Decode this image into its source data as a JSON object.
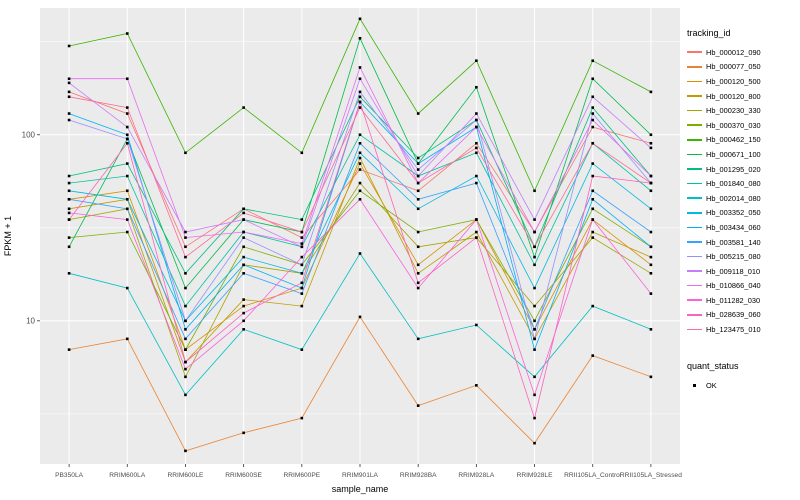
{
  "chart_data": {
    "type": "line",
    "title": "",
    "xlabel": "sample_name",
    "ylabel": "FPKM + 1",
    "y_scale": "log10",
    "ylim": [
      1.7,
      480
    ],
    "y_ticks": [
      {
        "value": 10,
        "label": "10"
      },
      {
        "value": 100,
        "label": "100"
      }
    ],
    "y_minor_gridlines": [
      3.162,
      31.62,
      316.2
    ],
    "panel_background": "#EBEBEB",
    "grid_color": "#FFFFFF",
    "axis_text_color": "#4D4D4D",
    "tick_color": "#333333",
    "point_marker": "black-square",
    "categories": [
      "PB350LA",
      "RRIM600LA",
      "RRIM600LE",
      "RRIM600SE",
      "RRIM600PE",
      "RRIM901LA",
      "RRIM928BA",
      "RRIM928LA",
      "RRIM928LE",
      "RRII105LA_Control",
      "RRII105LA_Stressed"
    ],
    "series": [
      {
        "name": "Hb_000012_090",
        "color": "#F8766D",
        "values": [
          170,
          130,
          25,
          40,
          28,
          65,
          50,
          90,
          30,
          110,
          90
        ]
      },
      {
        "name": "Hb_000077_050",
        "color": "#EA8331",
        "values": [
          7,
          8,
          2,
          2.5,
          3,
          10.5,
          3.5,
          4.5,
          2.2,
          6.5,
          5
        ]
      },
      {
        "name": "Hb_000120_500",
        "color": "#D89000",
        "values": [
          45,
          50,
          7,
          12,
          15,
          70,
          20,
          35,
          9,
          35,
          20
        ]
      },
      {
        "name": "Hb_000120_800",
        "color": "#C09B00",
        "values": [
          40,
          45,
          6,
          13,
          12,
          75,
          18,
          30,
          8,
          30,
          22
        ]
      },
      {
        "name": "Hb_000230_330",
        "color": "#A3A500",
        "values": [
          35,
          40,
          5,
          20,
          18,
          55,
          25,
          28,
          12,
          28,
          18
        ]
      },
      {
        "name": "Hb_000370_030",
        "color": "#7CAE00",
        "values": [
          28,
          30,
          7,
          25,
          20,
          50,
          30,
          35,
          10,
          40,
          25
        ]
      },
      {
        "name": "Hb_000462_150",
        "color": "#39B600",
        "values": [
          300,
          350,
          80,
          140,
          80,
          420,
          130,
          250,
          50,
          250,
          170
        ]
      },
      {
        "name": "Hb_000671_100",
        "color": "#00BB4E",
        "values": [
          25,
          95,
          15,
          35,
          30,
          330,
          70,
          180,
          22,
          200,
          100
        ]
      },
      {
        "name": "Hb_001295_020",
        "color": "#00BF7D",
        "values": [
          60,
          70,
          18,
          40,
          35,
          160,
          75,
          120,
          25,
          140,
          60
        ]
      },
      {
        "name": "Hb_001840_080",
        "color": "#00C1A3",
        "values": [
          55,
          60,
          12,
          30,
          25,
          100,
          60,
          80,
          20,
          90,
          50
        ]
      },
      {
        "name": "Hb_002014_080",
        "color": "#00BFC4",
        "values": [
          18,
          15,
          4,
          9,
          7,
          23,
          8,
          9.5,
          5,
          12,
          9
        ]
      },
      {
        "name": "Hb_003352_050",
        "color": "#00BAE0",
        "values": [
          50,
          45,
          10,
          22,
          18,
          80,
          40,
          60,
          15,
          70,
          40
        ]
      },
      {
        "name": "Hb_003434_060",
        "color": "#00B0F6",
        "values": [
          130,
          100,
          9,
          20,
          15,
          150,
          70,
          110,
          7,
          45,
          25
        ]
      },
      {
        "name": "Hb_003581_140",
        "color": "#35A2FF",
        "values": [
          45,
          40,
          8,
          18,
          14,
          90,
          45,
          55,
          9,
          50,
          30
        ]
      },
      {
        "name": "Hb_005215_080",
        "color": "#9590FF",
        "values": [
          120,
          95,
          10,
          28,
          20,
          170,
          65,
          120,
          8,
          130,
          55
        ]
      },
      {
        "name": "Hb_009118_010",
        "color": "#C77CFF",
        "values": [
          190,
          110,
          30,
          35,
          25,
          200,
          60,
          130,
          35,
          160,
          85
        ]
      },
      {
        "name": "Hb_010866_040",
        "color": "#E76BF3",
        "values": [
          200,
          200,
          28,
          30,
          26,
          230,
          55,
          110,
          30,
          120,
          60
        ]
      },
      {
        "name": "Hb_011282_030",
        "color": "#FA62DB",
        "values": [
          38,
          35,
          5.5,
          10,
          22,
          45,
          15,
          35,
          4,
          35,
          14
        ]
      },
      {
        "name": "Hb_028639_060",
        "color": "#FF62BC",
        "values": [
          35,
          90,
          6,
          11,
          16,
          150,
          16,
          28,
          3,
          60,
          55
        ]
      },
      {
        "name": "Hb_123475_010",
        "color": "#FF6A98",
        "values": [
          160,
          140,
          22,
          38,
          30,
          140,
          55,
          85,
          25,
          90,
          55
        ]
      }
    ],
    "legend": {
      "color_title": "tracking_id",
      "shape_title": "quant_status",
      "shape_items": [
        {
          "label": "OK",
          "marker": "black-point"
        }
      ],
      "position": "right"
    }
  }
}
